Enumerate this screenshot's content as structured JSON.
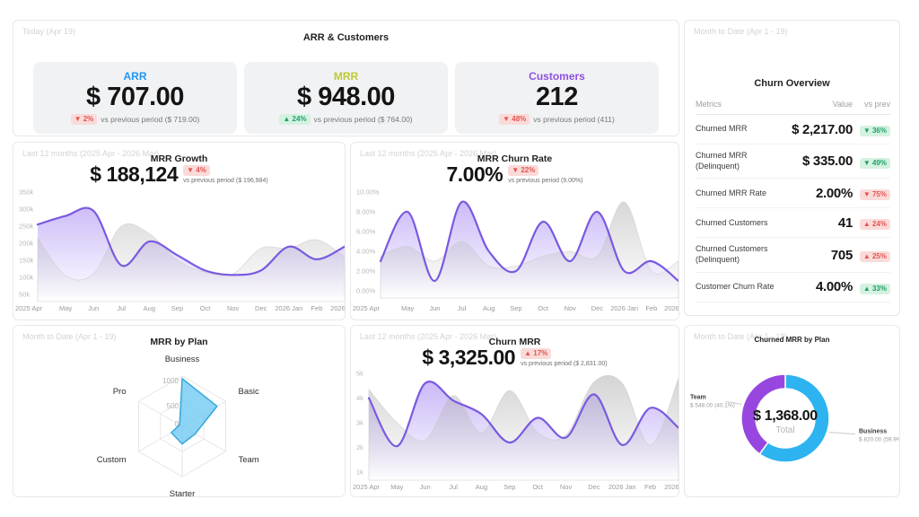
{
  "colors": {
    "arr": "#2196f3",
    "mrr": "#c0ca33",
    "customers": "#8e52e0",
    "area_line": "#7a59e0",
    "area_fill": "#9674f0",
    "prev_fill": "#b0b0b0",
    "radar_fill": "#70c9f2",
    "radar_stroke": "#35a8dd",
    "donut_blue": "#2db3f0",
    "donut_purple": "#9846e0",
    "badge_red_bg": "#fadbd9",
    "badge_red_fg": "#e2554e",
    "badge_green_bg": "#d5f1e0",
    "badge_green_fg": "#1fa06a"
  },
  "kpi_panel": {
    "period": "Today (Apr 19)",
    "title": "ARR & Customers",
    "cards": [
      {
        "label": "ARR",
        "color": "#2196f3",
        "value": "$ 707.00",
        "delta": "2%",
        "direction": "down",
        "sentiment": "bad",
        "vs": "vs previous period ($ 719.00)"
      },
      {
        "label": "MRR",
        "color": "#c0ca33",
        "value": "$ 948.00",
        "delta": "24%",
        "direction": "up",
        "sentiment": "good",
        "vs": "vs previous period ($ 764.00)"
      },
      {
        "label": "Customers",
        "color": "#8e52e0",
        "value": "212",
        "delta": "48%",
        "direction": "down",
        "sentiment": "bad",
        "vs": "vs previous period (411)"
      }
    ]
  },
  "churn_overview": {
    "period": "Month to Date (Apr 1 - 19)",
    "title": "Churn Overview",
    "columns": [
      "Metrics",
      "Value",
      "vs prev"
    ],
    "rows": [
      {
        "metric": "Churned MRR",
        "value": "$ 2,217.00",
        "delta": "36%",
        "direction": "down",
        "sentiment": "good"
      },
      {
        "metric": "Churned MRR (Delinquent)",
        "value": "$ 335.00",
        "delta": "49%",
        "direction": "down",
        "sentiment": "good"
      },
      {
        "metric": "Churned MRR Rate",
        "value": "2.00%",
        "delta": "75%",
        "direction": "down",
        "sentiment": "bad"
      },
      {
        "metric": "Churned Customers",
        "value": "41",
        "delta": "24%",
        "direction": "up",
        "sentiment": "bad"
      },
      {
        "metric": "Churned Customers (Delinquent)",
        "value": "705",
        "delta": "25%",
        "direction": "up",
        "sentiment": "bad"
      },
      {
        "metric": "Customer Churn Rate",
        "value": "4.00%",
        "delta": "33%",
        "direction": "up",
        "sentiment": "good"
      }
    ]
  },
  "chart_data": [
    {
      "id": "mrr_growth",
      "type": "area",
      "period": "Last 12 months (2025 Apr - 2026 Mar)",
      "title": "MRR Growth",
      "value": "$ 188,124",
      "delta": "4%",
      "direction": "down",
      "sentiment": "bad",
      "vs": "vs previous period ($ 196,984)",
      "x": [
        "2025 Apr",
        "May",
        "Jun",
        "Jul",
        "Aug",
        "Sep",
        "Oct",
        "Nov",
        "Dec",
        "2026 Jan",
        "Feb",
        "2026 Mar"
      ],
      "unit": "thousand $",
      "ylim": [
        50,
        350
      ],
      "yticks": [
        {
          "v": 350,
          "label": "350k"
        },
        {
          "v": 300,
          "label": "300k"
        },
        {
          "v": 250,
          "label": "250k"
        },
        {
          "v": 200,
          "label": "200k"
        },
        {
          "v": 150,
          "label": "150k"
        },
        {
          "v": 100,
          "label": "100k"
        },
        {
          "v": 50,
          "label": "50k"
        }
      ],
      "series": [
        {
          "name": "current",
          "values": [
            255,
            280,
            295,
            135,
            205,
            165,
            120,
            107,
            120,
            190,
            153,
            190
          ]
        },
        {
          "name": "previous period",
          "values": [
            215,
            105,
            110,
            250,
            228,
            150,
            115,
            110,
            185,
            185,
            210,
            160
          ]
        }
      ]
    },
    {
      "id": "churn_rate",
      "type": "area",
      "period": "Last 12 months (2025 Apr - 2026 Mar)",
      "title": "MRR Churn Rate",
      "value": "7.00%",
      "delta": "22%",
      "direction": "down",
      "sentiment": "bad",
      "vs": "vs previous period (9.00%)",
      "x": [
        "2025 Apr",
        "May",
        "Jun",
        "Jul",
        "Aug",
        "Sep",
        "Oct",
        "Nov",
        "Dec",
        "2026 Jan",
        "Feb",
        "2026 Mar"
      ],
      "unit": "%",
      "ylim": [
        0,
        10
      ],
      "yticks": [
        {
          "v": 10,
          "label": "10.00%"
        },
        {
          "v": 8,
          "label": "8.00%"
        },
        {
          "v": 6,
          "label": "6.00%"
        },
        {
          "v": 4,
          "label": "4.00%"
        },
        {
          "v": 2,
          "label": "2.00%"
        },
        {
          "v": 0,
          "label": "0.00%"
        }
      ],
      "series": [
        {
          "name": "current",
          "values": [
            3,
            8,
            1,
            9,
            4,
            2,
            7,
            3,
            8,
            2,
            3,
            1
          ]
        },
        {
          "name": "previous period",
          "values": [
            3.5,
            4.5,
            3,
            5,
            2.5,
            2.5,
            3.5,
            4,
            3.5,
            9,
            2,
            3
          ]
        }
      ]
    },
    {
      "id": "mrr_by_plan",
      "type": "radar",
      "period": "Month to Date (Apr 1 - 19)",
      "title": "MRR by Plan",
      "axes": [
        "Business",
        "Basic",
        "Team",
        "Starter",
        "Custom",
        "Pro"
      ],
      "values": [
        950,
        800,
        300,
        350,
        250,
        60
      ],
      "max": 1000,
      "ticks": [
        {
          "v": 1000,
          "label": "1000"
        },
        {
          "v": 500,
          "label": "500"
        },
        {
          "v": 0,
          "label": "0"
        }
      ]
    },
    {
      "id": "churn_mrr",
      "type": "area",
      "period": "Last 12 months (2025 Apr - 2026 Mar)",
      "title": "Churn MRR",
      "value": "$ 3,325.00",
      "delta": "17%",
      "direction": "up",
      "sentiment": "bad",
      "vs": "vs previous period ($ 2,831.00)",
      "x": [
        "2025 Apr",
        "May",
        "Jun",
        "Jul",
        "Aug",
        "Sep",
        "Oct",
        "Nov",
        "Dec",
        "2026 Jan",
        "Feb",
        "2026 Mar"
      ],
      "unit": "thousand $",
      "ylim": [
        1,
        5
      ],
      "yticks": [
        {
          "v": 5,
          "label": "5k"
        },
        {
          "v": 4,
          "label": "4k"
        },
        {
          "v": 3,
          "label": "3k"
        },
        {
          "v": 2,
          "label": "2k"
        },
        {
          "v": 1,
          "label": "1k"
        }
      ],
      "series": [
        {
          "name": "current",
          "values": [
            4.0,
            2.05,
            4.6,
            3.9,
            3.35,
            2.2,
            3.2,
            2.4,
            4.15,
            2.1,
            3.6,
            2.8
          ]
        },
        {
          "name": "previous period",
          "values": [
            4.35,
            3.0,
            2.3,
            4.1,
            2.6,
            4.3,
            2.6,
            2.5,
            4.65,
            4.6,
            2.1,
            4.8
          ]
        }
      ]
    },
    {
      "id": "churned_mrr_by_plan",
      "type": "donut",
      "period": "Month to Date (Apr 1 - 19)",
      "title": "Churned MRR by Plan",
      "total": "$ 1,368.00",
      "total_label": "Total",
      "slices": [
        {
          "name": "Business",
          "value_label": "$ 820.00 (59.9%)",
          "pct": 59.9,
          "color": "#2db3f0"
        },
        {
          "name": "Team",
          "value_label": "$ 548.00 (40.1%)",
          "pct": 40.1,
          "color": "#9846e0"
        }
      ]
    }
  ]
}
